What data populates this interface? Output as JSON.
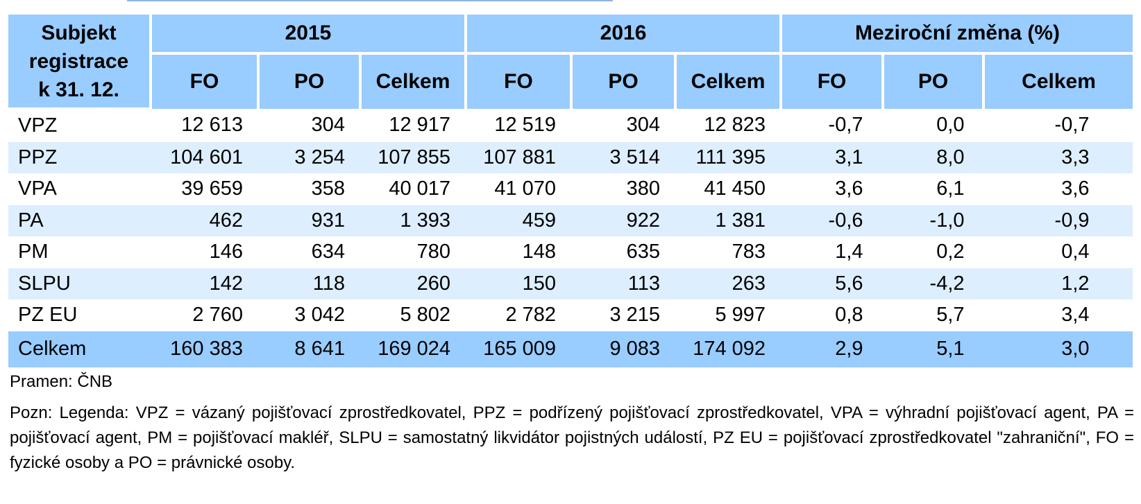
{
  "table": {
    "subject_header_lines": [
      "Subjekt",
      "registrace",
      "k 31. 12."
    ],
    "groups": [
      "2015",
      "2016",
      "Meziroční změna (%)"
    ],
    "subheaders": [
      "FO",
      "PO",
      "Celkem",
      "FO",
      "PO",
      "Celkem",
      "FO",
      "PO",
      "Celkem"
    ],
    "rows": [
      {
        "label": "VPZ",
        "values": [
          "12 613",
          "304",
          "12 917",
          "12 519",
          "304",
          "12 823",
          "-0,7",
          "0,0",
          "-0,7"
        ]
      },
      {
        "label": "PPZ",
        "values": [
          "104 601",
          "3 254",
          "107 855",
          "107 881",
          "3 514",
          "111 395",
          "3,1",
          "8,0",
          "3,3"
        ]
      },
      {
        "label": "VPA",
        "values": [
          "39 659",
          "358",
          "40 017",
          "41 070",
          "380",
          "41 450",
          "3,6",
          "6,1",
          "3,6"
        ]
      },
      {
        "label": "PA",
        "values": [
          "462",
          "931",
          "1 393",
          "459",
          "922",
          "1 381",
          "-0,6",
          "-1,0",
          "-0,9"
        ]
      },
      {
        "label": "PM",
        "values": [
          "146",
          "634",
          "780",
          "148",
          "635",
          "783",
          "1,4",
          "0,2",
          "0,4"
        ]
      },
      {
        "label": "SLPU",
        "values": [
          "142",
          "118",
          "260",
          "150",
          "113",
          "263",
          "5,6",
          "-4,2",
          "1,2"
        ]
      },
      {
        "label": "PZ EU",
        "values": [
          "2 760",
          "3 042",
          "5 802",
          "2 782",
          "3 215",
          "5 997",
          "0,8",
          "5,7",
          "3,4"
        ]
      },
      {
        "label": "Celkem",
        "values": [
          "160 383",
          "8 641",
          "169 024",
          "165 009",
          "9 083",
          "174 092",
          "2,9",
          "5,1",
          "3,0"
        ]
      }
    ]
  },
  "source": "Pramen: ČNB",
  "legend": "Pozn: Legenda: VPZ = vázaný pojišťovací zprostředkovatel, PPZ = podřízený pojišťovací zprostředkovatel, VPA = výhradní pojišťovací agent, PA = pojišťovací agent, PM = pojišťovací makléř, SLPU = samostatný likvidátor pojistných událostí, PZ EU = pojišťovací zprostředkovatel \"zahraniční\", FO = fyzické osoby a PO = právnické osoby.",
  "colors": {
    "header": "#99ccff",
    "band": "#ddeeff",
    "rule": "#8db4e2"
  }
}
